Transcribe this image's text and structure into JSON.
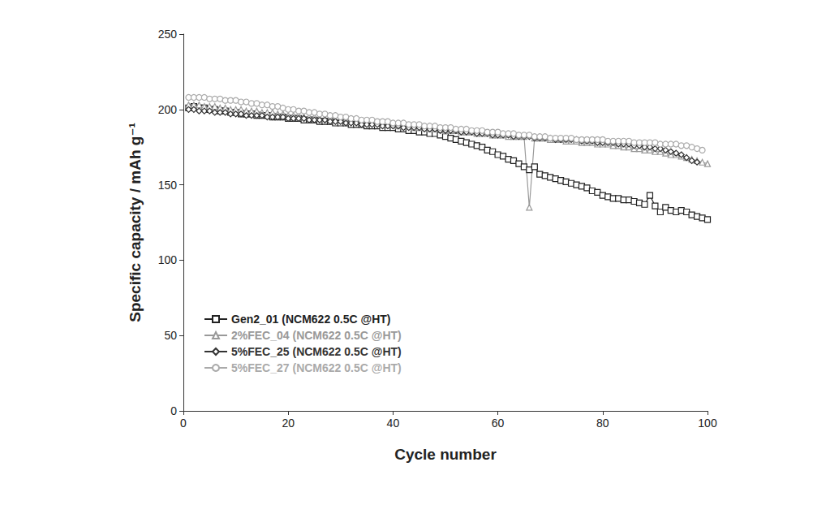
{
  "chart_data": {
    "type": "line",
    "x_label": "Cycle number",
    "y_label": "Specific capacity / mAh g⁻¹",
    "x": [
      1,
      2,
      3,
      4,
      5,
      6,
      7,
      8,
      9,
      10,
      11,
      12,
      13,
      14,
      15,
      16,
      17,
      18,
      19,
      20,
      21,
      22,
      23,
      24,
      25,
      26,
      27,
      28,
      29,
      30,
      31,
      32,
      33,
      34,
      35,
      36,
      37,
      38,
      39,
      40,
      41,
      42,
      43,
      44,
      45,
      46,
      47,
      48,
      49,
      50,
      51,
      52,
      53,
      54,
      55,
      56,
      57,
      58,
      59,
      60,
      61,
      62,
      63,
      64,
      65,
      66,
      67,
      68,
      69,
      70,
      71,
      72,
      73,
      74,
      75,
      76,
      77,
      78,
      79,
      80,
      81,
      82,
      83,
      84,
      85,
      86,
      87,
      88,
      89,
      90,
      91,
      92,
      93,
      94,
      95,
      96,
      97,
      98,
      99,
      100
    ],
    "series": [
      {
        "name": "Gen2_01 (NCM622 0.5C @HT)",
        "color": "#222222",
        "marker": "square",
        "values": [
          201,
          202,
          201,
          201,
          200,
          200,
          199,
          199,
          198,
          198,
          197,
          197,
          197,
          196,
          196,
          196,
          195,
          195,
          195,
          194,
          194,
          194,
          193,
          193,
          193,
          192,
          192,
          192,
          191,
          191,
          191,
          190,
          190,
          190,
          189,
          189,
          189,
          188,
          188,
          188,
          187,
          187,
          186,
          186,
          185,
          185,
          184,
          184,
          183,
          182,
          181,
          180,
          179,
          178,
          177,
          176,
          175,
          173,
          172,
          170,
          169,
          167,
          166,
          164,
          162,
          160,
          162,
          157,
          156,
          155,
          154,
          153,
          152,
          151,
          150,
          149,
          148,
          146,
          145,
          143,
          142,
          141,
          141,
          140,
          140,
          139,
          138,
          137,
          143,
          136,
          132,
          135,
          133,
          132,
          133,
          132,
          130,
          129,
          128,
          127
        ]
      },
      {
        "name": "2%FEC_04 (NCM622 0.5C @HT)",
        "color": "#999999",
        "marker": "triangle",
        "values": [
          203,
          203,
          203,
          202,
          202,
          202,
          201,
          201,
          200,
          200,
          200,
          199,
          199,
          199,
          198,
          198,
          198,
          197,
          197,
          196,
          196,
          196,
          195,
          195,
          195,
          194,
          194,
          194,
          193,
          193,
          193,
          192,
          192,
          192,
          191,
          191,
          191,
          190,
          190,
          190,
          189,
          189,
          189,
          188,
          188,
          188,
          187,
          187,
          187,
          186,
          186,
          186,
          185,
          185,
          185,
          184,
          184,
          184,
          183,
          183,
          183,
          182,
          182,
          182,
          182,
          135,
          181,
          181,
          181,
          180,
          180,
          180,
          179,
          179,
          179,
          178,
          178,
          178,
          177,
          177,
          177,
          176,
          176,
          175,
          175,
          174,
          174,
          173,
          173,
          172,
          172,
          171,
          170,
          170,
          169,
          168,
          167,
          166,
          165,
          164
        ]
      },
      {
        "name": "5%FEC_25 (NCM622 0.5C @HT)",
        "color": "#333333",
        "marker": "diamond",
        "values": [
          200,
          200,
          199,
          199,
          199,
          198,
          198,
          198,
          197,
          197,
          197,
          196,
          196,
          196,
          196,
          195,
          195,
          195,
          195,
          194,
          194,
          194,
          194,
          193,
          193,
          193,
          193,
          192,
          192,
          192,
          191,
          191,
          191,
          190,
          190,
          190,
          190,
          189,
          189,
          189,
          189,
          188,
          188,
          188,
          188,
          187,
          187,
          187,
          186,
          186,
          186,
          186,
          185,
          185,
          185,
          184,
          184,
          184,
          183,
          183,
          183,
          183,
          182,
          182,
          182,
          182,
          181,
          181,
          181,
          181,
          180,
          180,
          180,
          180,
          180,
          179,
          179,
          179,
          178,
          178,
          178,
          178,
          177,
          177,
          177,
          176,
          176,
          175,
          175,
          174,
          174,
          173,
          172,
          171,
          170,
          168,
          166,
          165,
          null,
          null
        ]
      },
      {
        "name": "5%FEC_27 (NCM622 0.5C @HT)",
        "color": "#aaaaaa",
        "marker": "circle",
        "values": [
          208,
          208,
          208,
          208,
          207,
          207,
          207,
          206,
          206,
          206,
          205,
          205,
          204,
          204,
          203,
          203,
          202,
          202,
          201,
          200,
          200,
          199,
          199,
          198,
          198,
          197,
          197,
          196,
          196,
          195,
          195,
          194,
          194,
          193,
          193,
          193,
          192,
          192,
          192,
          191,
          191,
          191,
          190,
          190,
          190,
          189,
          189,
          189,
          188,
          188,
          188,
          187,
          187,
          187,
          186,
          186,
          186,
          185,
          185,
          185,
          184,
          184,
          184,
          183,
          183,
          183,
          182,
          182,
          182,
          181,
          181,
          181,
          181,
          181,
          180,
          180,
          180,
          180,
          180,
          180,
          179,
          179,
          179,
          179,
          179,
          178,
          178,
          178,
          178,
          178,
          177,
          177,
          177,
          177,
          176,
          176,
          175,
          174,
          173,
          null
        ]
      }
    ],
    "xlim": [
      0,
      100
    ],
    "xticks": [
      0,
      20,
      40,
      60,
      80,
      100
    ],
    "ylim": [
      0,
      250
    ],
    "yticks": [
      0,
      50,
      100,
      150,
      200,
      250
    ],
    "grid": false,
    "legend": "lower left"
  }
}
